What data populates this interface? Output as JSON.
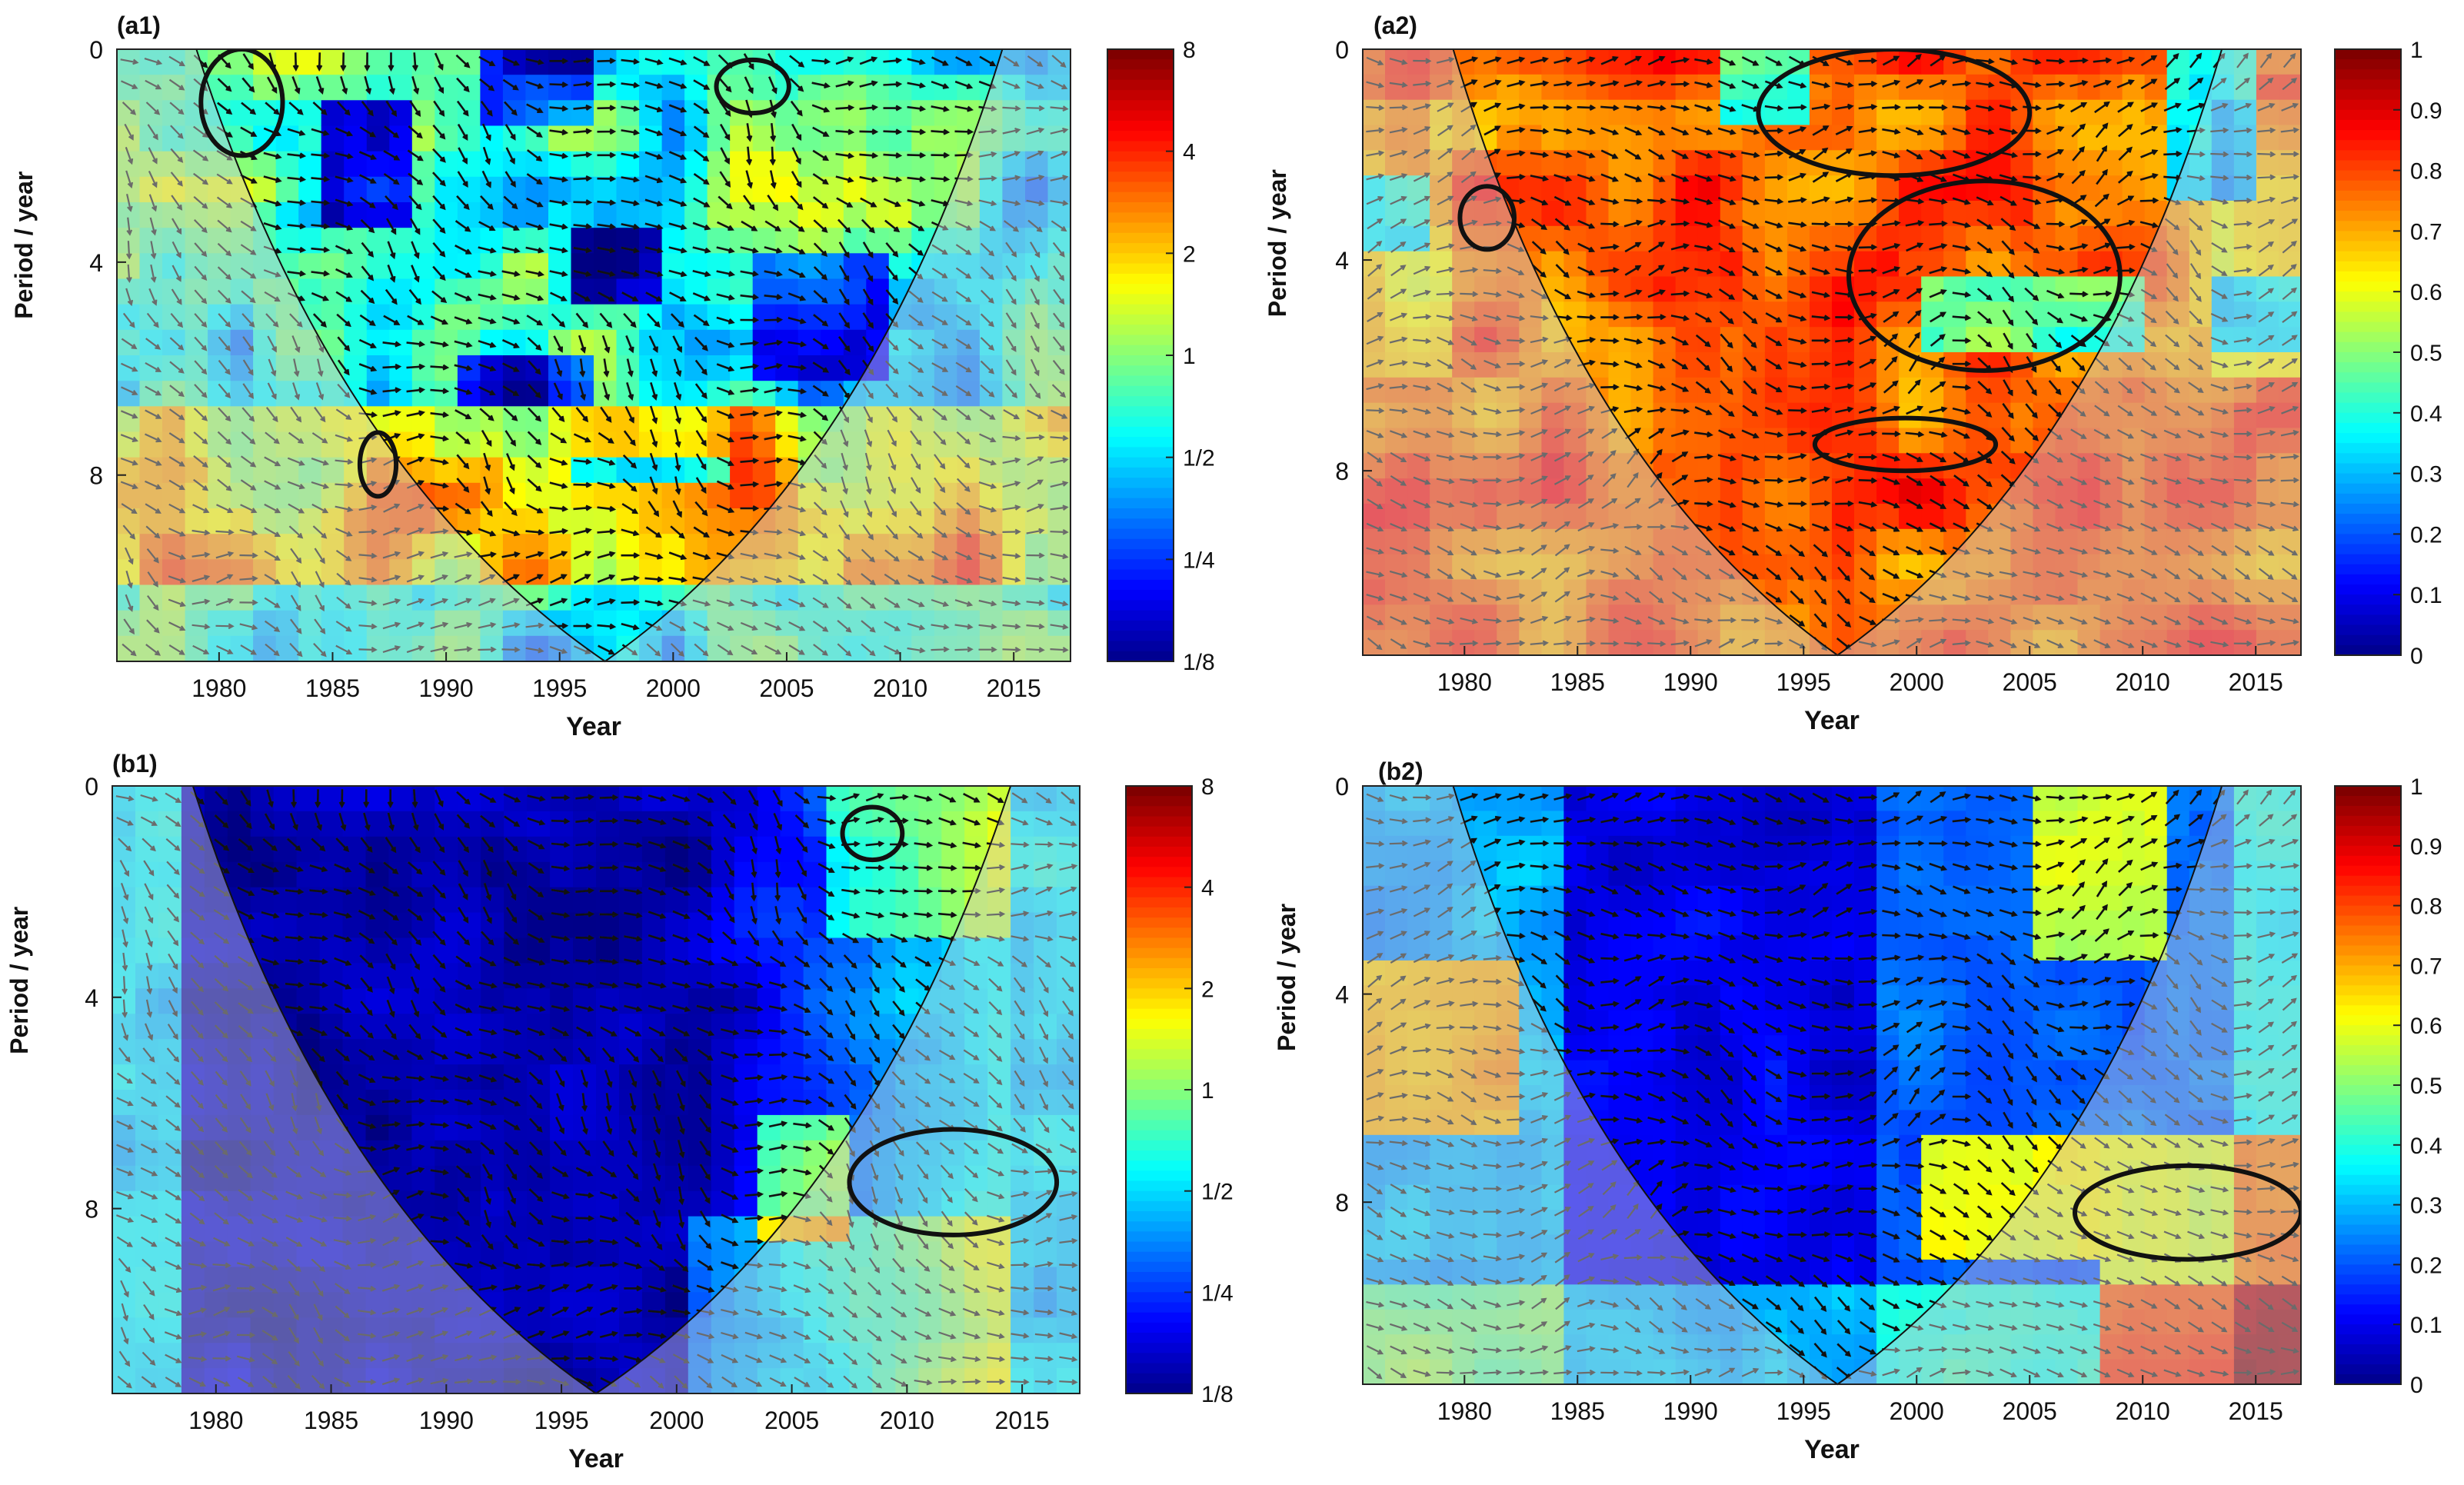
{
  "figure": {
    "panels": [
      {
        "id": "a1",
        "label": "(a1)",
        "colorbar_ticks": [
          "8",
          "4",
          "2",
          "1",
          "1/2",
          "1/4",
          "1/8"
        ],
        "base_level": "low-mid",
        "significant_level": "high",
        "coi_center_year": 1997,
        "coi_top_left_year": 1979,
        "coi_top_right_year": 2014.5
      },
      {
        "id": "a2",
        "label": "(a2)",
        "colorbar_ticks": [
          "1",
          "0.9",
          "0.8",
          "0.7",
          "0.6",
          "0.5",
          "0.4",
          "0.3",
          "0.2",
          "0.1",
          "0"
        ],
        "base_level": "high",
        "significant_level": "high",
        "coi_center_year": 1996.5,
        "coi_top_left_year": 1979.5,
        "coi_top_right_year": 2013.5
      },
      {
        "id": "b1",
        "label": "(b1)",
        "colorbar_ticks": [
          "8",
          "4",
          "2",
          "1",
          "1/2",
          "1/4",
          "1/8"
        ],
        "base_level": "low",
        "significant_level": "high",
        "coi_center_year": 1996.5,
        "coi_top_left_year": 1979,
        "coi_top_right_year": 2014.5
      },
      {
        "id": "b2",
        "label": "(b2)",
        "colorbar_ticks": [
          "1",
          "0.9",
          "0.8",
          "0.7",
          "0.6",
          "0.5",
          "0.4",
          "0.3",
          "0.2",
          "0.1",
          "0"
        ],
        "base_level": "low",
        "significant_level": "mid",
        "coi_center_year": 1996.5,
        "coi_top_left_year": 1979.5,
        "coi_top_right_year": 2013.5
      }
    ]
  },
  "chart_data": [
    {
      "type": "heatmap",
      "panel": "(a1)",
      "xlabel": "Year",
      "ylabel": "Period / year",
      "xlim": [
        1975.5,
        2017.5
      ],
      "ylim": [
        0,
        11.5
      ],
      "xticks": [
        1980,
        1985,
        1990,
        1995,
        2000,
        2005,
        2010,
        2015
      ],
      "yticks": [
        0,
        4,
        8
      ],
      "colorbar": {
        "scale": "log2",
        "ticks": [
          "8",
          "4",
          "2",
          "1",
          "1/2",
          "1/4",
          "1/8"
        ],
        "range": [
          0.125,
          8
        ]
      },
      "significant_contours": [
        {
          "center": [
            1981,
            1
          ],
          "radius_years": 1.8,
          "radius_period": 1.0
        },
        {
          "center": [
            2003.5,
            0.7
          ],
          "radius_years": 1.6,
          "radius_period": 0.5
        },
        {
          "center": [
            1987,
            7.8
          ],
          "radius_years": 0.8,
          "radius_period": 0.6
        }
      ],
      "cone_of_influence": {
        "apex_year": 1997,
        "left_top_year": 1979,
        "right_top_year": 2014.5
      },
      "phase_arrows": true
    },
    {
      "type": "heatmap",
      "panel": "(a2)",
      "xlabel": "Year",
      "ylabel": "Period / year",
      "xlim": [
        1975.5,
        2017
      ],
      "ylim": [
        0,
        11.5
      ],
      "xticks": [
        1980,
        1985,
        1990,
        1995,
        2000,
        2005,
        2010,
        2015
      ],
      "yticks": [
        0,
        4,
        8
      ],
      "colorbar": {
        "scale": "linear",
        "ticks": [
          "1",
          "0.9",
          "0.8",
          "0.7",
          "0.6",
          "0.5",
          "0.4",
          "0.3",
          "0.2",
          "0.1",
          "0"
        ],
        "range": [
          0,
          1
        ]
      },
      "significant_contours": [
        {
          "center": [
            1999,
            1.2
          ],
          "radius_years": 6,
          "radius_period": 1.2
        },
        {
          "center": [
            2003,
            4.3
          ],
          "radius_years": 6,
          "radius_period": 1.8
        },
        {
          "center": [
            1999.5,
            7.5
          ],
          "radius_years": 4,
          "radius_period": 0.5
        },
        {
          "center": [
            1981,
            3.2
          ],
          "radius_years": 1.2,
          "radius_period": 0.6
        }
      ],
      "cone_of_influence": {
        "apex_year": 1996.5,
        "left_top_year": 1979.5,
        "right_top_year": 2013.5
      },
      "phase_arrows": true
    },
    {
      "type": "heatmap",
      "panel": "(b1)",
      "xlabel": "Year",
      "ylabel": "Period / year",
      "xlim": [
        1975.5,
        2017.5
      ],
      "ylim": [
        0,
        11.5
      ],
      "xticks": [
        1980,
        1985,
        1990,
        1995,
        2000,
        2005,
        2010,
        2015
      ],
      "yticks": [
        0,
        4,
        8
      ],
      "colorbar": {
        "scale": "log2",
        "ticks": [
          "8",
          "4",
          "2",
          "1",
          "1/2",
          "1/4",
          "1/8"
        ],
        "range": [
          0.125,
          8
        ]
      },
      "significant_contours": [
        {
          "center": [
            2008.5,
            0.9
          ],
          "radius_years": 1.3,
          "radius_period": 0.5
        },
        {
          "center": [
            2012,
            7.5
          ],
          "radius_years": 4.5,
          "radius_period": 1.0
        }
      ],
      "cone_of_influence": {
        "apex_year": 1996.5,
        "left_top_year": 1979,
        "right_top_year": 2014.5
      },
      "phase_arrows": true
    },
    {
      "type": "heatmap",
      "panel": "(b2)",
      "xlabel": "Year",
      "ylabel": "Period / year",
      "xlim": [
        1975.5,
        2017
      ],
      "ylim": [
        0,
        11.5
      ],
      "xticks": [
        1980,
        1985,
        1990,
        1995,
        2000,
        2005,
        2010,
        2015
      ],
      "yticks": [
        0,
        4,
        8
      ],
      "colorbar": {
        "scale": "linear",
        "ticks": [
          "1",
          "0.9",
          "0.8",
          "0.7",
          "0.6",
          "0.5",
          "0.4",
          "0.3",
          "0.2",
          "0.1",
          "0"
        ],
        "range": [
          0,
          1
        ]
      },
      "significant_contours": [
        {
          "center": [
            2012,
            8.2
          ],
          "radius_years": 5,
          "radius_period": 0.9
        }
      ],
      "cone_of_influence": {
        "apex_year": 1996.5,
        "left_top_year": 1979.5,
        "right_top_year": 2013.5
      },
      "phase_arrows": true
    }
  ]
}
